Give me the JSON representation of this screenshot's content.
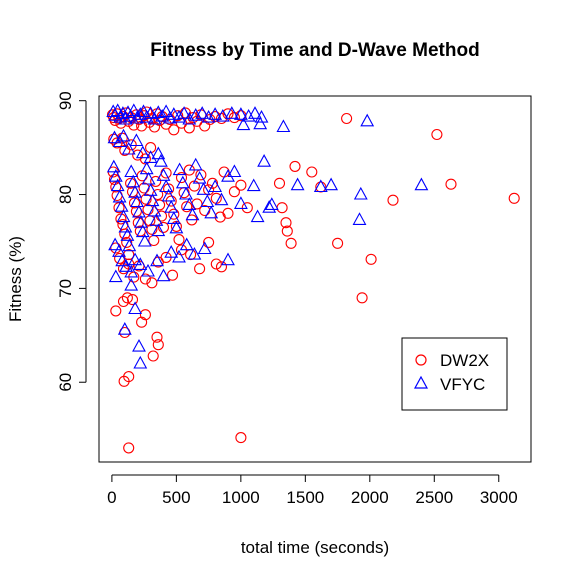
{
  "chart_data": {
    "type": "scatter",
    "title": "Fitness by Time and D-Wave Method",
    "xlabel": "total time (seconds)",
    "ylabel": "Fitness (%)",
    "xlim": [
      -100,
      3250
    ],
    "ylim": [
      51.5,
      90.5
    ],
    "xticks": [
      0,
      500,
      1000,
      1500,
      2000,
      2500,
      3000
    ],
    "yticks": [
      60,
      70,
      80,
      90
    ],
    "grid": false,
    "legend_position": "bottom-right",
    "series": [
      {
        "name": "DW2X",
        "marker": "circle",
        "color": "#ff0000",
        "points": [
          [
            5,
            88.5
          ],
          [
            15,
            88.2
          ],
          [
            25,
            87.9
          ],
          [
            40,
            88.6
          ],
          [
            55,
            88.1
          ],
          [
            70,
            87.6
          ],
          [
            90,
            88.3
          ],
          [
            110,
            88.7
          ],
          [
            130,
            87.8
          ],
          [
            150,
            88.2
          ],
          [
            170,
            87.4
          ],
          [
            190,
            88.5
          ],
          [
            210,
            88.0
          ],
          [
            230,
            87.3
          ],
          [
            250,
            88.4
          ],
          [
            270,
            88.8
          ],
          [
            290,
            87.7
          ],
          [
            310,
            88.1
          ],
          [
            330,
            87.2
          ],
          [
            350,
            88.6
          ],
          [
            370,
            87.9
          ],
          [
            390,
            88.3
          ],
          [
            420,
            87.5
          ],
          [
            450,
            88.0
          ],
          [
            480,
            86.9
          ],
          [
            510,
            88.4
          ],
          [
            540,
            87.6
          ],
          [
            570,
            88.7
          ],
          [
            600,
            87.1
          ],
          [
            630,
            88.2
          ],
          [
            660,
            87.8
          ],
          [
            690,
            88.5
          ],
          [
            720,
            87.3
          ],
          [
            760,
            88.0
          ],
          [
            800,
            88.3
          ],
          [
            850,
            88.1
          ],
          [
            900,
            88.6
          ],
          [
            950,
            88.2
          ],
          [
            1000,
            88.4
          ],
          [
            1820,
            88.1
          ],
          [
            2520,
            86.4
          ],
          [
            15,
            85.9
          ],
          [
            40,
            85.5
          ],
          [
            80,
            86.0
          ],
          [
            100,
            84.7
          ],
          [
            150,
            85.3
          ],
          [
            200,
            84.2
          ],
          [
            260,
            83.8
          ],
          [
            300,
            85.0
          ],
          [
            10,
            82.4
          ],
          [
            20,
            81.6
          ],
          [
            30,
            80.8
          ],
          [
            40,
            79.9
          ],
          [
            55,
            78.6
          ],
          [
            70,
            77.4
          ],
          [
            85,
            76.8
          ],
          [
            100,
            75.8
          ],
          [
            115,
            74.9
          ],
          [
            130,
            73.6
          ],
          [
            145,
            81.2
          ],
          [
            160,
            80.3
          ],
          [
            175,
            79.1
          ],
          [
            190,
            78.2
          ],
          [
            205,
            77.0
          ],
          [
            220,
            76.1
          ],
          [
            235,
            82.0
          ],
          [
            250,
            80.7
          ],
          [
            265,
            79.5
          ],
          [
            280,
            78.4
          ],
          [
            295,
            77.2
          ],
          [
            310,
            76.3
          ],
          [
            325,
            75.1
          ],
          [
            340,
            81.4
          ],
          [
            355,
            80.0
          ],
          [
            370,
            78.9
          ],
          [
            385,
            77.7
          ],
          [
            400,
            76.5
          ],
          [
            420,
            82.3
          ],
          [
            440,
            80.6
          ],
          [
            460,
            79.3
          ],
          [
            480,
            77.9
          ],
          [
            500,
            76.6
          ],
          [
            520,
            75.2
          ],
          [
            540,
            81.8
          ],
          [
            560,
            80.2
          ],
          [
            580,
            78.7
          ],
          [
            600,
            82.6
          ],
          [
            620,
            77.3
          ],
          [
            640,
            80.9
          ],
          [
            660,
            79.0
          ],
          [
            690,
            82.1
          ],
          [
            720,
            78.3
          ],
          [
            750,
            80.5
          ],
          [
            780,
            81.2
          ],
          [
            810,
            79.6
          ],
          [
            840,
            77.6
          ],
          [
            870,
            82.4
          ],
          [
            900,
            78.0
          ],
          [
            950,
            80.3
          ],
          [
            1000,
            81.0
          ],
          [
            1050,
            78.6
          ],
          [
            1300,
            81.2
          ],
          [
            1320,
            78.6
          ],
          [
            1350,
            77.0
          ],
          [
            1360,
            76.1
          ],
          [
            1390,
            74.8
          ],
          [
            1420,
            83.0
          ],
          [
            1550,
            82.4
          ],
          [
            1620,
            80.8
          ],
          [
            1750,
            74.8
          ],
          [
            2010,
            73.1
          ],
          [
            2180,
            79.4
          ],
          [
            2630,
            81.1
          ],
          [
            3120,
            79.6
          ],
          [
            30,
            74.3
          ],
          [
            60,
            73.2
          ],
          [
            90,
            72.1
          ],
          [
            130,
            72.6
          ],
          [
            170,
            71.2
          ],
          [
            210,
            72.4
          ],
          [
            260,
            71.0
          ],
          [
            310,
            70.6
          ],
          [
            360,
            72.8
          ],
          [
            420,
            73.3
          ],
          [
            470,
            71.4
          ],
          [
            540,
            74.1
          ],
          [
            610,
            73.6
          ],
          [
            680,
            72.1
          ],
          [
            750,
            74.9
          ],
          [
            810,
            72.6
          ],
          [
            850,
            72.3
          ],
          [
            120,
            69.0
          ],
          [
            90,
            68.6
          ],
          [
            160,
            68.8
          ],
          [
            260,
            67.2
          ],
          [
            230,
            66.4
          ],
          [
            30,
            67.6
          ],
          [
            100,
            65.3
          ],
          [
            350,
            64.8
          ],
          [
            360,
            64.0
          ],
          [
            320,
            62.8
          ],
          [
            95,
            60.1
          ],
          [
            130,
            60.6
          ],
          [
            1940,
            69.0
          ],
          [
            130,
            53.0
          ],
          [
            1000,
            54.1
          ]
        ]
      },
      {
        "name": "VFYC",
        "marker": "triangle",
        "color": "#0000ff",
        "points": [
          [
            10,
            88.8
          ],
          [
            25,
            88.4
          ],
          [
            45,
            88.9
          ],
          [
            65,
            88.2
          ],
          [
            85,
            88.6
          ],
          [
            105,
            88.0
          ],
          [
            125,
            88.7
          ],
          [
            145,
            88.3
          ],
          [
            170,
            88.9
          ],
          [
            195,
            88.1
          ],
          [
            220,
            88.5
          ],
          [
            245,
            88.8
          ],
          [
            270,
            88.2
          ],
          [
            300,
            88.6
          ],
          [
            330,
            88.0
          ],
          [
            360,
            88.7
          ],
          [
            390,
            88.3
          ],
          [
            420,
            88.8
          ],
          [
            450,
            88.1
          ],
          [
            480,
            88.5
          ],
          [
            520,
            88.2
          ],
          [
            560,
            88.6
          ],
          [
            600,
            88.0
          ],
          [
            650,
            88.4
          ],
          [
            700,
            88.6
          ],
          [
            750,
            88.2
          ],
          [
            800,
            88.5
          ],
          [
            860,
            88.3
          ],
          [
            930,
            88.6
          ],
          [
            1000,
            88.5
          ],
          [
            1060,
            88.3
          ],
          [
            1110,
            88.6
          ],
          [
            1160,
            88.2
          ],
          [
            1020,
            87.4
          ],
          [
            1150,
            87.5
          ],
          [
            1330,
            87.2
          ],
          [
            1980,
            87.8
          ],
          [
            20,
            86.0
          ],
          [
            60,
            85.6
          ],
          [
            90,
            86.2
          ],
          [
            130,
            84.8
          ],
          [
            190,
            85.7
          ],
          [
            240,
            84.4
          ],
          [
            300,
            83.9
          ],
          [
            360,
            84.3
          ],
          [
            15,
            82.9
          ],
          [
            30,
            81.9
          ],
          [
            45,
            80.9
          ],
          [
            60,
            79.7
          ],
          [
            75,
            78.7
          ],
          [
            90,
            77.6
          ],
          [
            105,
            76.5
          ],
          [
            120,
            75.6
          ],
          [
            135,
            74.5
          ],
          [
            150,
            82.4
          ],
          [
            165,
            81.3
          ],
          [
            180,
            80.2
          ],
          [
            195,
            79.2
          ],
          [
            210,
            78.1
          ],
          [
            225,
            77.0
          ],
          [
            240,
            76.0
          ],
          [
            255,
            75.0
          ],
          [
            270,
            82.7
          ],
          [
            285,
            81.6
          ],
          [
            300,
            80.4
          ],
          [
            315,
            79.3
          ],
          [
            330,
            78.2
          ],
          [
            345,
            77.2
          ],
          [
            360,
            76.1
          ],
          [
            380,
            83.5
          ],
          [
            400,
            82.0
          ],
          [
            420,
            80.8
          ],
          [
            440,
            79.8
          ],
          [
            460,
            78.6
          ],
          [
            480,
            77.4
          ],
          [
            500,
            76.4
          ],
          [
            525,
            82.6
          ],
          [
            550,
            81.2
          ],
          [
            575,
            80.0
          ],
          [
            600,
            78.9
          ],
          [
            625,
            77.8
          ],
          [
            650,
            83.1
          ],
          [
            680,
            81.7
          ],
          [
            710,
            80.5
          ],
          [
            740,
            79.2
          ],
          [
            770,
            78.0
          ],
          [
            800,
            80.8
          ],
          [
            850,
            79.4
          ],
          [
            900,
            81.9
          ],
          [
            950,
            82.4
          ],
          [
            1000,
            79.0
          ],
          [
            1100,
            80.9
          ],
          [
            1130,
            77.6
          ],
          [
            1180,
            83.5
          ],
          [
            1220,
            78.6
          ],
          [
            1240,
            78.9
          ],
          [
            1440,
            81.0
          ],
          [
            1620,
            80.8
          ],
          [
            1700,
            81.0
          ],
          [
            1930,
            80.0
          ],
          [
            1920,
            77.3
          ],
          [
            2400,
            81.0
          ],
          [
            25,
            74.6
          ],
          [
            55,
            73.9
          ],
          [
            80,
            72.9
          ],
          [
            110,
            72.3
          ],
          [
            150,
            71.7
          ],
          [
            180,
            73.0
          ],
          [
            220,
            72.5
          ],
          [
            280,
            71.8
          ],
          [
            350,
            72.9
          ],
          [
            400,
            71.3
          ],
          [
            460,
            73.8
          ],
          [
            520,
            73.3
          ],
          [
            580,
            74.6
          ],
          [
            640,
            73.6
          ],
          [
            720,
            74.2
          ],
          [
            900,
            73.0
          ],
          [
            30,
            71.2
          ],
          [
            150,
            70.3
          ],
          [
            180,
            67.8
          ],
          [
            100,
            65.6
          ],
          [
            210,
            63.8
          ],
          [
            220,
            62.0
          ]
        ]
      }
    ]
  }
}
